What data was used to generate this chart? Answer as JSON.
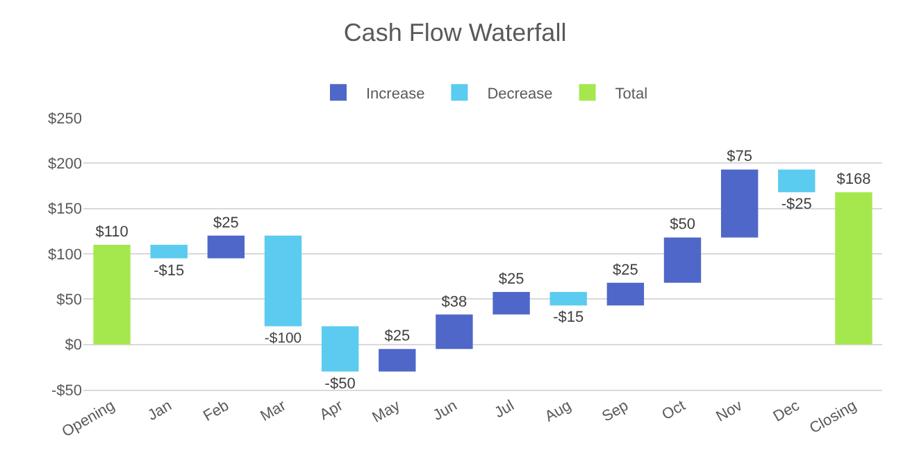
{
  "chart_data": {
    "type": "bar",
    "title": "Cash Flow Waterfall",
    "categories": [
      "Opening",
      "Jan",
      "Feb",
      "Mar",
      "Apr",
      "May",
      "Jun",
      "Jul",
      "Aug",
      "Sep",
      "Oct",
      "Nov",
      "Dec",
      "Closing"
    ],
    "series": [
      {
        "name": "Increase",
        "color": "#4f67c8",
        "values": [
          null,
          null,
          25,
          null,
          null,
          25,
          38,
          25,
          null,
          25,
          50,
          75,
          null,
          null
        ],
        "base": [
          null,
          null,
          95,
          null,
          null,
          -30,
          -5,
          33,
          null,
          43,
          68,
          118,
          null,
          null
        ],
        "value_labels": [
          null,
          null,
          "$25",
          null,
          null,
          "$25",
          "$38",
          "$25",
          null,
          "$25",
          "$50",
          "$75",
          null,
          null
        ]
      },
      {
        "name": "Decrease",
        "color": "#5bcbf0",
        "values": [
          null,
          -15,
          null,
          -100,
          -50,
          null,
          null,
          null,
          -15,
          null,
          null,
          null,
          -25,
          null
        ],
        "base": [
          null,
          110,
          null,
          120,
          20,
          null,
          null,
          null,
          58,
          null,
          null,
          null,
          193,
          null
        ],
        "value_labels": [
          null,
          "-$15",
          null,
          "-$100",
          "-$50",
          null,
          null,
          null,
          "-$15",
          null,
          null,
          null,
          "-$25",
          null
        ]
      },
      {
        "name": "Total",
        "color": "#a5e84d",
        "values": [
          110,
          null,
          null,
          null,
          null,
          null,
          null,
          null,
          null,
          null,
          null,
          null,
          null,
          168
        ],
        "base": [
          0,
          null,
          null,
          null,
          null,
          null,
          null,
          null,
          null,
          null,
          null,
          null,
          null,
          0
        ],
        "value_labels": [
          "$110",
          null,
          null,
          null,
          null,
          null,
          null,
          null,
          null,
          null,
          null,
          null,
          null,
          "$168"
        ]
      }
    ],
    "ylim": [
      -50,
      250
    ],
    "yticks": [
      {
        "value": -50,
        "label": "-$50"
      },
      {
        "value": 0,
        "label": "$0"
      },
      {
        "value": 50,
        "label": "$50"
      },
      {
        "value": 100,
        "label": "$100"
      },
      {
        "value": 150,
        "label": "$150"
      },
      {
        "value": 200,
        "label": "$200"
      },
      {
        "value": 250,
        "label": "$250"
      }
    ],
    "grid": "y",
    "legend": "top"
  }
}
